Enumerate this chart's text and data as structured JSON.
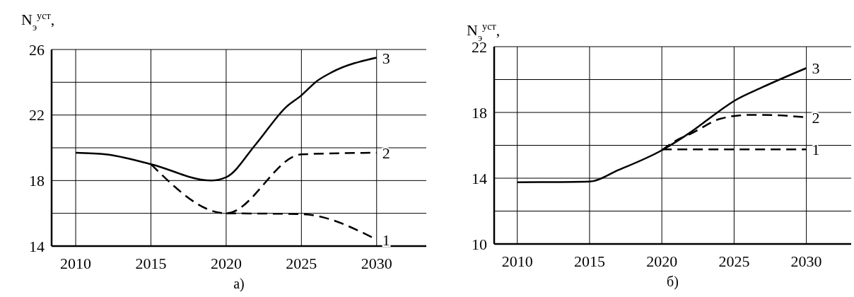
{
  "chart_data": [
    {
      "type": "line",
      "ylabel": "N$_{э}$$^{уст}$,",
      "annotations": [
        "а)"
      ],
      "grid": true,
      "xlim": [
        2008.4,
        2033.3
      ],
      "xticks": [
        2010,
        2015,
        2020,
        2025,
        2030
      ],
      "ylim": [
        14,
        26
      ],
      "yticks": [
        14,
        {
          "value": 16,
          "label": null
        },
        18,
        {
          "value": 20,
          "label": null
        },
        22,
        {
          "value": 24,
          "label": null
        },
        26
      ],
      "series": [
        {
          "name": "3",
          "color": "#000000",
          "line_style": "solid",
          "x": [
            2010,
            2012,
            2015,
            2019,
            2020,
            2022,
            2024,
            2025,
            2026,
            2027,
            2030
          ],
          "values": [
            19.7,
            19.6,
            19.0,
            18.0,
            18.2,
            20.25,
            22.5,
            23.2,
            24.05,
            24.6,
            25.5
          ]
        },
        {
          "name": "2",
          "color": "#000000",
          "line_style": "dashed",
          "x": [
            2015,
            2020,
            2025,
            2030
          ],
          "values": [
            19.0,
            16.0,
            19.6,
            19.7
          ]
        },
        {
          "name": "1",
          "color": "#000000",
          "line_style": "dashed",
          "x": [
            2020,
            2025,
            2030
          ],
          "values": [
            16.0,
            15.95,
            14.4
          ]
        }
      ]
    },
    {
      "type": "line",
      "ylabel": "N$_{э}$$^{уст}$,",
      "annotations": [
        "б)"
      ],
      "grid": true,
      "xlim": [
        2008.4,
        2033.1
      ],
      "xticks": [
        2010,
        2015,
        2020,
        2025,
        2030
      ],
      "ylim": [
        10,
        22
      ],
      "yticks": [
        10,
        {
          "value": 12,
          "label": null
        },
        14,
        {
          "value": 16,
          "label": null
        },
        18,
        {
          "value": 20,
          "label": null
        },
        22
      ],
      "series": [
        {
          "name": "3",
          "color": "#000000",
          "line_style": "solid",
          "x": [
            2010,
            2015,
            2017,
            2020,
            2022,
            2024,
            2025,
            2027,
            2030
          ],
          "values": [
            13.75,
            13.8,
            14.5,
            15.7,
            16.8,
            18.1,
            18.7,
            19.55,
            20.7
          ]
        },
        {
          "name": "2",
          "color": "#000000",
          "line_style": "dashed",
          "x": [
            2020,
            2021,
            2022,
            2024,
            2026,
            2027,
            2030
          ],
          "values": [
            15.7,
            16.3,
            16.7,
            17.6,
            17.85,
            17.85,
            17.7
          ]
        },
        {
          "name": "1",
          "color": "#000000",
          "line_style": "dashed",
          "x": [
            2020,
            2030
          ],
          "values": [
            15.75,
            15.75
          ]
        }
      ]
    }
  ]
}
